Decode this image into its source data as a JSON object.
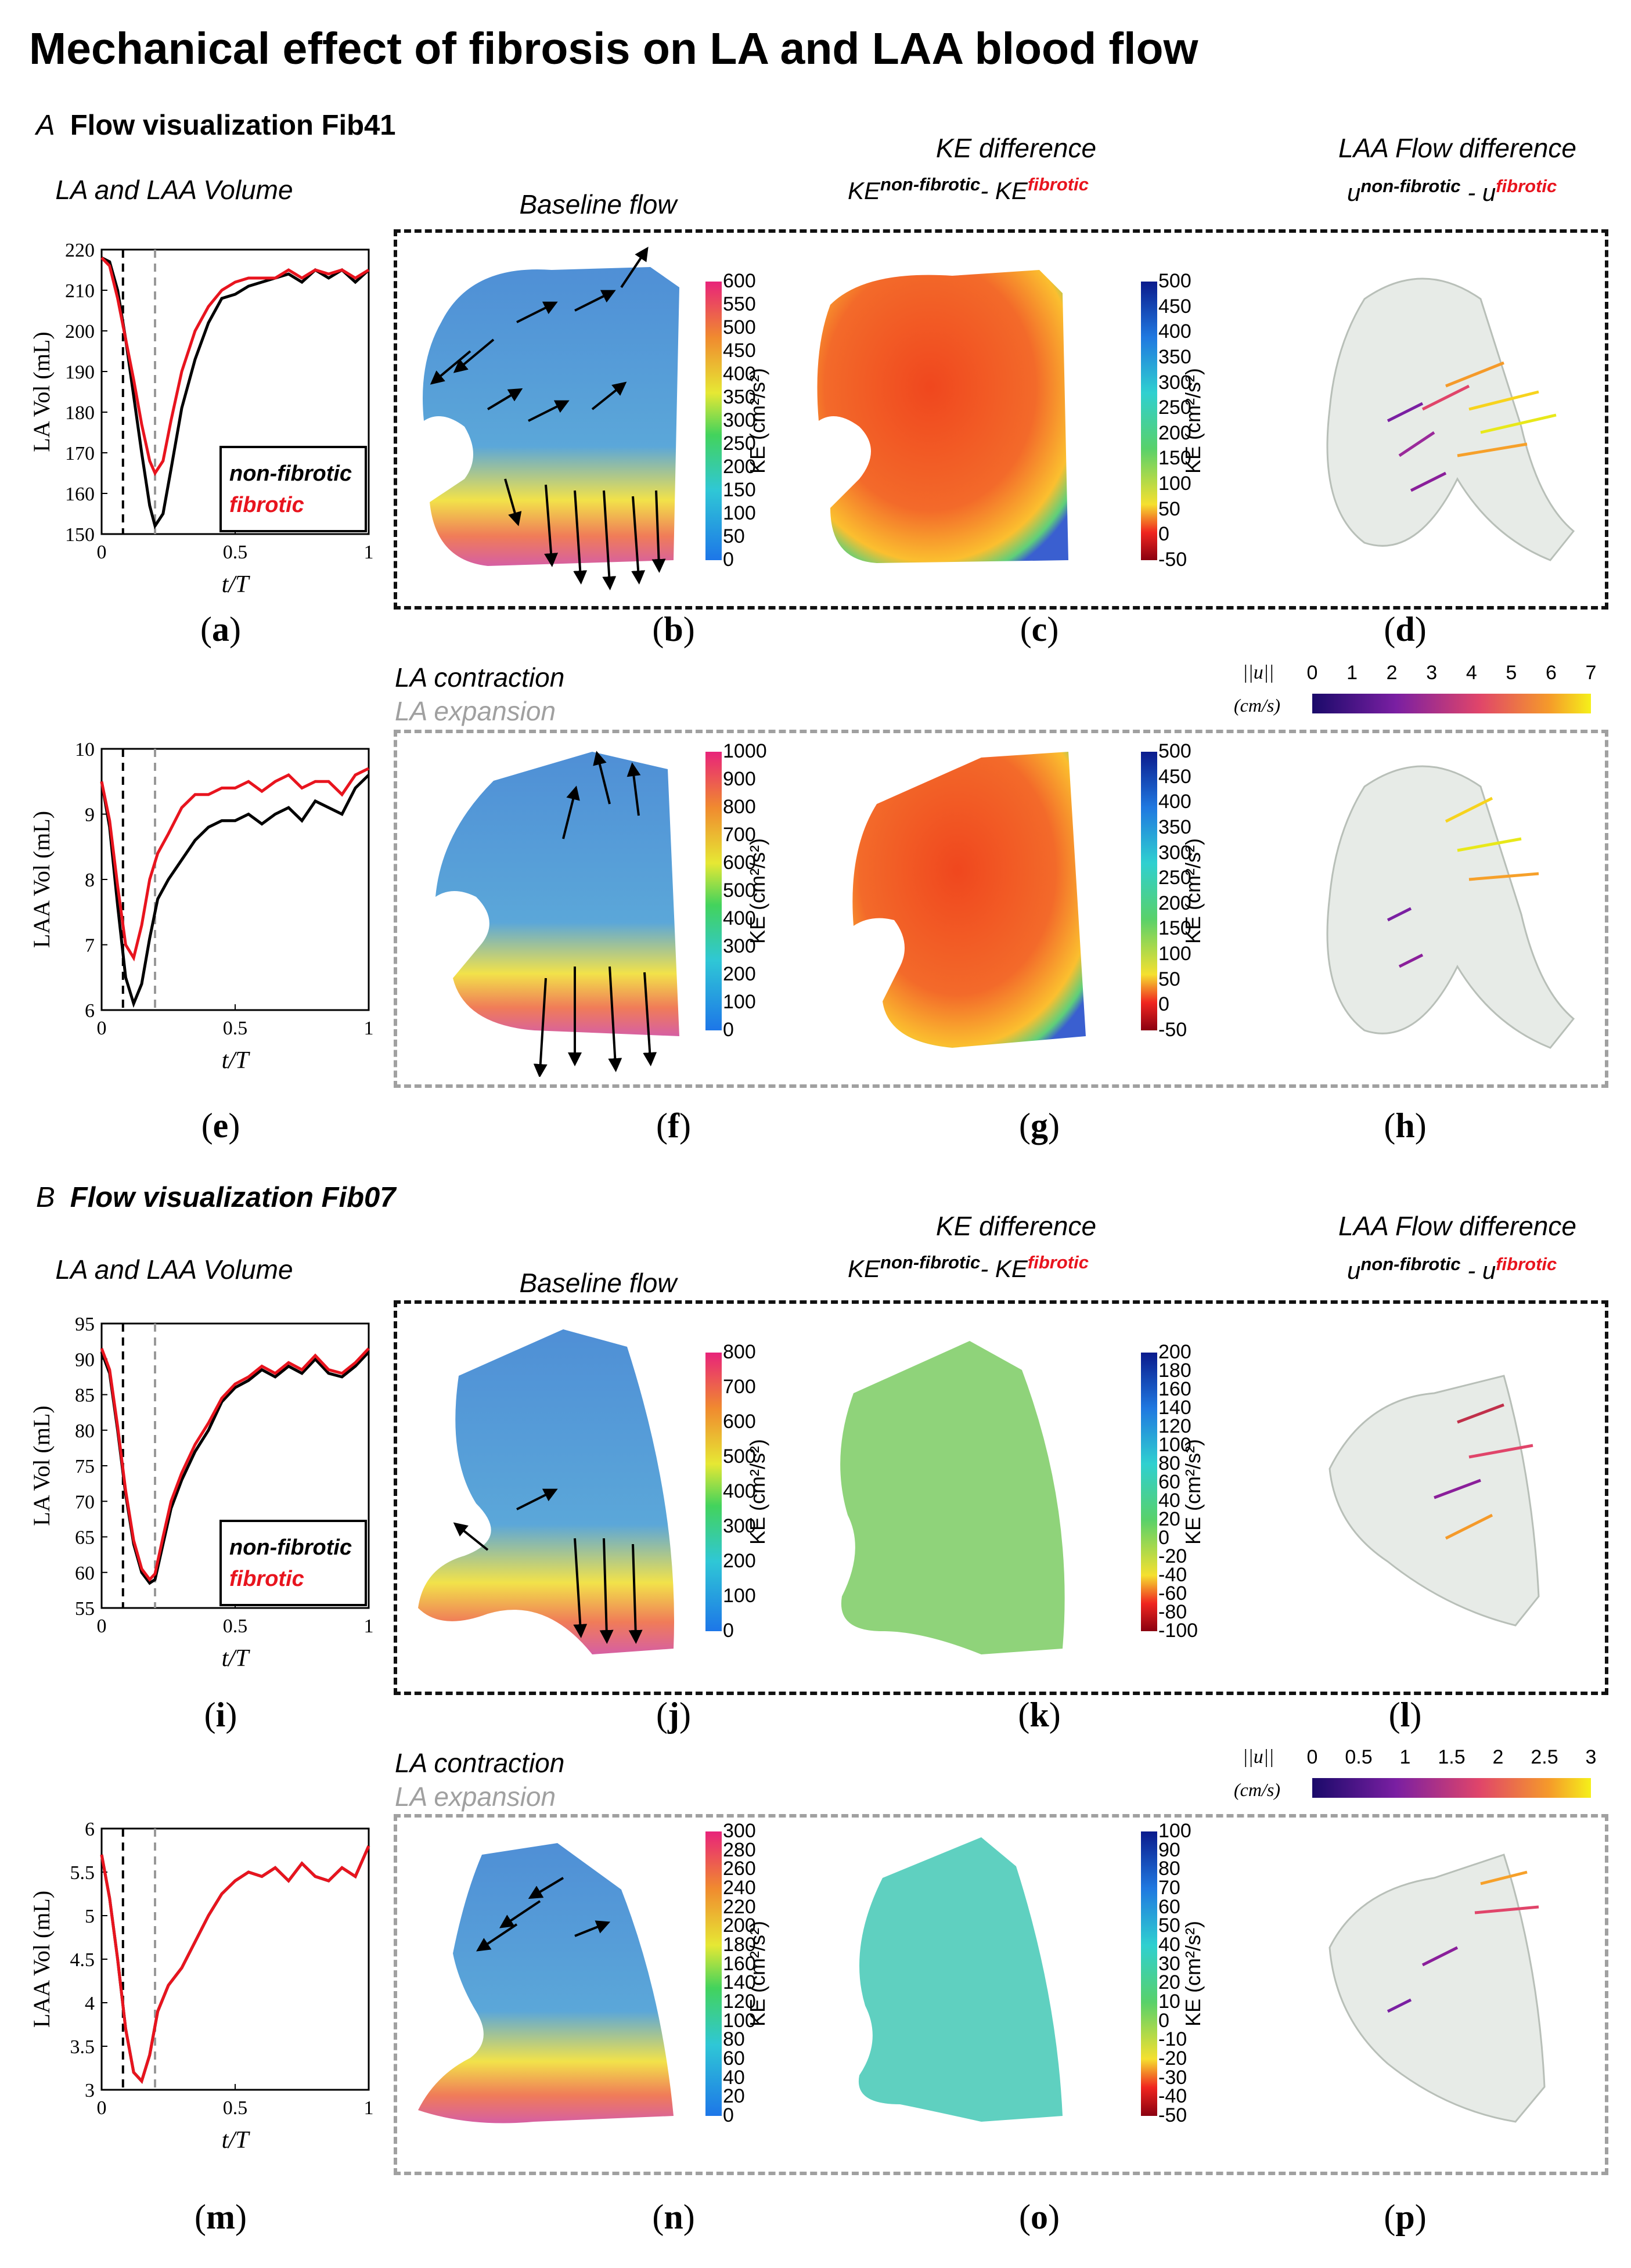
{
  "title": "Mechanical effect of fibrosis on LA and LAA blood flow",
  "sectionA": {
    "letter": "A",
    "title": "Flow visualization Fib41"
  },
  "sectionB": {
    "letter": "B",
    "title": "Flow visualization Fib07"
  },
  "labels": {
    "volume": "LA and LAA Volume",
    "baseline": "Baseline flow",
    "ke_diff": "KE difference",
    "laa_flow_diff": "LAA Flow difference",
    "contraction": "LA contraction",
    "expansion": "LA expansion",
    "ke_formula_base": "KE",
    "ke_sup1": "non-fibrotic",
    "ke_minus": "- ",
    "ke_sup2": "fibrotic",
    "u_sym": "u",
    "u_sup1": "non-fibrotic",
    "u_minus": " - ",
    "u_sup2": "fibrotic",
    "magnitude_label": "||u||",
    "magnitude_unit": "(cm/s)"
  },
  "legend": {
    "nonfibrotic": "non-fibrotic",
    "fibrotic": "fibrotic"
  },
  "panels": [
    "(a)",
    "(b)",
    "(c)",
    "(d)",
    "(e)",
    "(f)",
    "(g)",
    "(h)",
    "(i)",
    "(j)",
    "(k)",
    "(l)",
    "(m)",
    "(n)",
    "(o)",
    "(p)"
  ],
  "colorbars": {
    "b": {
      "label": "KE (cm²/s²)",
      "ticks": [
        "600",
        "550",
        "500",
        "450",
        "400",
        "350",
        "300",
        "250",
        "200",
        "150",
        "100",
        "50",
        "0"
      ]
    },
    "c": {
      "label": "KE (cm²/s²)",
      "ticks": [
        "500",
        "450",
        "400",
        "350",
        "300",
        "250",
        "200",
        "150",
        "100",
        "50",
        "0",
        "-50"
      ]
    },
    "f": {
      "label": "KE (cm²/s²)",
      "ticks": [
        "1000",
        "900",
        "800",
        "700",
        "600",
        "500",
        "400",
        "300",
        "200",
        "100",
        "0"
      ]
    },
    "g": {
      "label": "KE (cm²/s²)",
      "ticks": [
        "500",
        "450",
        "400",
        "350",
        "300",
        "250",
        "200",
        "150",
        "100",
        "50",
        "0",
        "-50"
      ]
    },
    "j": {
      "label": "KE (cm²/s²)",
      "ticks": [
        "800",
        "700",
        "600",
        "500",
        "400",
        "300",
        "200",
        "100",
        "0"
      ]
    },
    "k": {
      "label": "KE (cm²/s²)",
      "ticks": [
        "200",
        "180",
        "160",
        "140",
        "120",
        "100",
        "80",
        "60",
        "40",
        "20",
        "0",
        "-20",
        "-40",
        "-60",
        "-80",
        "-100"
      ]
    },
    "n": {
      "label": "KE (cm²/s²)",
      "ticks": [
        "300",
        "280",
        "260",
        "240",
        "220",
        "200",
        "180",
        "160",
        "140",
        "120",
        "100",
        "80",
        "60",
        "40",
        "20",
        "0"
      ]
    },
    "o": {
      "label": "KE (cm²/s²)",
      "ticks": [
        "100",
        "90",
        "80",
        "70",
        "60",
        "50",
        "40",
        "30",
        "20",
        "10",
        "0",
        "-10",
        "-20",
        "-30",
        "-40",
        "-50"
      ]
    },
    "mag_A": {
      "ticks": [
        "0",
        "1",
        "2",
        "3",
        "4",
        "5",
        "6",
        "7"
      ]
    },
    "mag_B": {
      "ticks": [
        "0",
        "0.5",
        "1",
        "1.5",
        "2",
        "2.5",
        "3"
      ]
    }
  },
  "chart_data": [
    {
      "panel": "a",
      "type": "line",
      "xlabel": "t/T",
      "ylabel": "LA Vol (mL)",
      "xlim": [
        0,
        1
      ],
      "ylim": [
        150,
        220
      ],
      "xticks": [
        "0",
        "0.5",
        "1"
      ],
      "yticks": [
        "150",
        "160",
        "170",
        "180",
        "190",
        "200",
        "210",
        "220"
      ],
      "series": [
        {
          "name": "non-fibrotic",
          "color": "#000000",
          "x": [
            0,
            0.03,
            0.06,
            0.09,
            0.12,
            0.15,
            0.18,
            0.2,
            0.23,
            0.26,
            0.3,
            0.35,
            0.4,
            0.45,
            0.5,
            0.55,
            0.6,
            0.65,
            0.7,
            0.75,
            0.8,
            0.85,
            0.9,
            0.95,
            1
          ],
          "y": [
            218,
            217,
            210,
            198,
            184,
            170,
            157,
            152,
            155,
            166,
            181,
            193,
            202,
            208,
            209,
            211,
            212,
            213,
            214,
            212,
            215,
            213,
            215,
            212,
            215
          ]
        },
        {
          "name": "fibrotic",
          "color": "#e8141e",
          "x": [
            0,
            0.03,
            0.06,
            0.09,
            0.12,
            0.15,
            0.18,
            0.2,
            0.23,
            0.26,
            0.3,
            0.35,
            0.4,
            0.45,
            0.5,
            0.55,
            0.6,
            0.65,
            0.7,
            0.75,
            0.8,
            0.85,
            0.9,
            0.95,
            1
          ],
          "y": [
            218,
            216,
            208,
            198,
            188,
            177,
            168,
            165,
            168,
            178,
            190,
            200,
            206,
            210,
            212,
            213,
            213,
            213,
            215,
            213,
            215,
            214,
            215,
            213,
            215
          ]
        }
      ]
    },
    {
      "panel": "e",
      "type": "line",
      "xlabel": "t/T",
      "ylabel": "LAA Vol (mL)",
      "xlim": [
        0,
        1
      ],
      "ylim": [
        6,
        10
      ],
      "xticks": [
        "0",
        "0.5",
        "1"
      ],
      "yticks": [
        "6",
        "7",
        "8",
        "9",
        "10"
      ],
      "series": [
        {
          "name": "non-fibrotic",
          "color": "#000000",
          "x": [
            0,
            0.03,
            0.06,
            0.09,
            0.12,
            0.15,
            0.18,
            0.21,
            0.25,
            0.3,
            0.35,
            0.4,
            0.45,
            0.5,
            0.55,
            0.6,
            0.65,
            0.7,
            0.75,
            0.8,
            0.85,
            0.9,
            0.95,
            1
          ],
          "y": [
            9.5,
            8.8,
            7.6,
            6.5,
            6.1,
            6.4,
            7.1,
            7.7,
            8.0,
            8.3,
            8.6,
            8.8,
            8.9,
            8.9,
            9.0,
            8.85,
            9.0,
            9.1,
            8.9,
            9.2,
            9.1,
            9.0,
            9.4,
            9.6
          ]
        },
        {
          "name": "fibrotic",
          "color": "#e8141e",
          "x": [
            0,
            0.03,
            0.06,
            0.09,
            0.12,
            0.15,
            0.18,
            0.21,
            0.25,
            0.3,
            0.35,
            0.4,
            0.45,
            0.5,
            0.55,
            0.6,
            0.65,
            0.7,
            0.75,
            0.8,
            0.85,
            0.9,
            0.95,
            1
          ],
          "y": [
            9.5,
            8.9,
            7.9,
            7.0,
            6.8,
            7.3,
            8.0,
            8.4,
            8.7,
            9.1,
            9.3,
            9.3,
            9.4,
            9.4,
            9.5,
            9.35,
            9.5,
            9.6,
            9.4,
            9.5,
            9.5,
            9.3,
            9.6,
            9.7
          ]
        }
      ]
    },
    {
      "panel": "i",
      "type": "line",
      "xlabel": "t/T",
      "ylabel": "LA Vol (mL)",
      "xlim": [
        0,
        1
      ],
      "ylim": [
        55,
        95
      ],
      "xticks": [
        "0",
        "0.5",
        "1"
      ],
      "yticks": [
        "55",
        "60",
        "65",
        "70",
        "75",
        "80",
        "85",
        "90",
        "95"
      ],
      "series": [
        {
          "name": "non-fibrotic",
          "color": "#000000",
          "x": [
            0,
            0.03,
            0.06,
            0.09,
            0.12,
            0.15,
            0.18,
            0.2,
            0.23,
            0.26,
            0.3,
            0.35,
            0.4,
            0.45,
            0.5,
            0.55,
            0.6,
            0.65,
            0.7,
            0.75,
            0.8,
            0.85,
            0.9,
            0.95,
            1
          ],
          "y": [
            91,
            88,
            80,
            71,
            64,
            60,
            58.5,
            59,
            64,
            69,
            73,
            77,
            80,
            84,
            86,
            87,
            88.5,
            87.5,
            89,
            88,
            90,
            88,
            87.5,
            89,
            91
          ]
        },
        {
          "name": "fibrotic",
          "color": "#e8141e",
          "x": [
            0,
            0.03,
            0.06,
            0.09,
            0.12,
            0.15,
            0.18,
            0.2,
            0.23,
            0.26,
            0.3,
            0.35,
            0.4,
            0.45,
            0.5,
            0.55,
            0.6,
            0.65,
            0.7,
            0.75,
            0.8,
            0.85,
            0.9,
            0.95,
            1
          ],
          "y": [
            91.5,
            88.5,
            80.5,
            71.5,
            64.5,
            60.5,
            59,
            59.8,
            65,
            70,
            74,
            78,
            81,
            84.5,
            86.5,
            87.5,
            89,
            88,
            89.5,
            88.5,
            90.5,
            88.5,
            88,
            89.5,
            91.5
          ]
        }
      ]
    },
    {
      "panel": "m",
      "type": "line",
      "xlabel": "t/T",
      "ylabel": "LAA Vol (mL)",
      "xlim": [
        0,
        1
      ],
      "ylim": [
        3,
        6
      ],
      "xticks": [
        "0",
        "0.5",
        "1"
      ],
      "yticks": [
        "3",
        "3.5",
        "4",
        "4.5",
        "5",
        "5.5",
        "6"
      ],
      "series": [
        {
          "name": "non-fibrotic",
          "color": "#000000",
          "x": [
            0,
            0.03,
            0.06,
            0.09,
            0.12,
            0.15,
            0.18,
            0.21,
            0.25,
            0.3,
            0.35,
            0.4,
            0.45,
            0.5,
            0.55,
            0.6,
            0.65,
            0.7,
            0.75,
            0.8,
            0.85,
            0.9,
            0.95,
            1
          ],
          "y": [
            5.7,
            5.2,
            4.5,
            3.7,
            3.2,
            3.1,
            3.4,
            3.9,
            4.2,
            4.4,
            4.7,
            5.0,
            5.25,
            5.4,
            5.5,
            5.45,
            5.55,
            5.4,
            5.6,
            5.45,
            5.4,
            5.55,
            5.45,
            5.8
          ]
        },
        {
          "name": "fibrotic",
          "color": "#e8141e",
          "x": [
            0,
            0.03,
            0.06,
            0.09,
            0.12,
            0.15,
            0.18,
            0.21,
            0.25,
            0.3,
            0.35,
            0.4,
            0.45,
            0.5,
            0.55,
            0.6,
            0.65,
            0.7,
            0.75,
            0.8,
            0.85,
            0.9,
            0.95,
            1
          ],
          "y": [
            5.7,
            5.2,
            4.5,
            3.7,
            3.2,
            3.1,
            3.4,
            3.9,
            4.2,
            4.4,
            4.7,
            5.0,
            5.25,
            5.4,
            5.5,
            5.45,
            5.55,
            5.4,
            5.6,
            5.45,
            5.4,
            5.55,
            5.45,
            5.8
          ]
        }
      ]
    }
  ]
}
